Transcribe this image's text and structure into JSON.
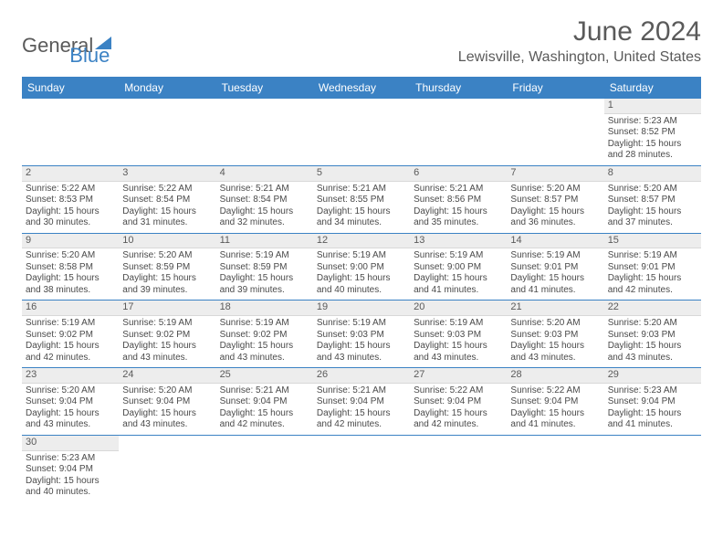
{
  "logo": {
    "part1": "General",
    "part2": "Blue"
  },
  "title": "June 2024",
  "location": "Lewisville, Washington, United States",
  "colors": {
    "header_bg": "#3b82c4",
    "header_text": "#ffffff",
    "text": "#5a5a5a",
    "cell_text": "#4a4a4a",
    "divider": "#3b82c4",
    "daynum_bg": "#ededed"
  },
  "typography": {
    "title_fontsize": 30,
    "location_fontsize": 16,
    "dayheader_fontsize": 12,
    "cell_fontsize": 10
  },
  "day_names": [
    "Sunday",
    "Monday",
    "Tuesday",
    "Wednesday",
    "Thursday",
    "Friday",
    "Saturday"
  ],
  "weeks": [
    [
      null,
      null,
      null,
      null,
      null,
      null,
      {
        "n": "1",
        "sunrise": "Sunrise: 5:23 AM",
        "sunset": "Sunset: 8:52 PM",
        "dl1": "Daylight: 15 hours",
        "dl2": "and 28 minutes."
      }
    ],
    [
      {
        "n": "2",
        "sunrise": "Sunrise: 5:22 AM",
        "sunset": "Sunset: 8:53 PM",
        "dl1": "Daylight: 15 hours",
        "dl2": "and 30 minutes."
      },
      {
        "n": "3",
        "sunrise": "Sunrise: 5:22 AM",
        "sunset": "Sunset: 8:54 PM",
        "dl1": "Daylight: 15 hours",
        "dl2": "and 31 minutes."
      },
      {
        "n": "4",
        "sunrise": "Sunrise: 5:21 AM",
        "sunset": "Sunset: 8:54 PM",
        "dl1": "Daylight: 15 hours",
        "dl2": "and 32 minutes."
      },
      {
        "n": "5",
        "sunrise": "Sunrise: 5:21 AM",
        "sunset": "Sunset: 8:55 PM",
        "dl1": "Daylight: 15 hours",
        "dl2": "and 34 minutes."
      },
      {
        "n": "6",
        "sunrise": "Sunrise: 5:21 AM",
        "sunset": "Sunset: 8:56 PM",
        "dl1": "Daylight: 15 hours",
        "dl2": "and 35 minutes."
      },
      {
        "n": "7",
        "sunrise": "Sunrise: 5:20 AM",
        "sunset": "Sunset: 8:57 PM",
        "dl1": "Daylight: 15 hours",
        "dl2": "and 36 minutes."
      },
      {
        "n": "8",
        "sunrise": "Sunrise: 5:20 AM",
        "sunset": "Sunset: 8:57 PM",
        "dl1": "Daylight: 15 hours",
        "dl2": "and 37 minutes."
      }
    ],
    [
      {
        "n": "9",
        "sunrise": "Sunrise: 5:20 AM",
        "sunset": "Sunset: 8:58 PM",
        "dl1": "Daylight: 15 hours",
        "dl2": "and 38 minutes."
      },
      {
        "n": "10",
        "sunrise": "Sunrise: 5:20 AM",
        "sunset": "Sunset: 8:59 PM",
        "dl1": "Daylight: 15 hours",
        "dl2": "and 39 minutes."
      },
      {
        "n": "11",
        "sunrise": "Sunrise: 5:19 AM",
        "sunset": "Sunset: 8:59 PM",
        "dl1": "Daylight: 15 hours",
        "dl2": "and 39 minutes."
      },
      {
        "n": "12",
        "sunrise": "Sunrise: 5:19 AM",
        "sunset": "Sunset: 9:00 PM",
        "dl1": "Daylight: 15 hours",
        "dl2": "and 40 minutes."
      },
      {
        "n": "13",
        "sunrise": "Sunrise: 5:19 AM",
        "sunset": "Sunset: 9:00 PM",
        "dl1": "Daylight: 15 hours",
        "dl2": "and 41 minutes."
      },
      {
        "n": "14",
        "sunrise": "Sunrise: 5:19 AM",
        "sunset": "Sunset: 9:01 PM",
        "dl1": "Daylight: 15 hours",
        "dl2": "and 41 minutes."
      },
      {
        "n": "15",
        "sunrise": "Sunrise: 5:19 AM",
        "sunset": "Sunset: 9:01 PM",
        "dl1": "Daylight: 15 hours",
        "dl2": "and 42 minutes."
      }
    ],
    [
      {
        "n": "16",
        "sunrise": "Sunrise: 5:19 AM",
        "sunset": "Sunset: 9:02 PM",
        "dl1": "Daylight: 15 hours",
        "dl2": "and 42 minutes."
      },
      {
        "n": "17",
        "sunrise": "Sunrise: 5:19 AM",
        "sunset": "Sunset: 9:02 PM",
        "dl1": "Daylight: 15 hours",
        "dl2": "and 43 minutes."
      },
      {
        "n": "18",
        "sunrise": "Sunrise: 5:19 AM",
        "sunset": "Sunset: 9:02 PM",
        "dl1": "Daylight: 15 hours",
        "dl2": "and 43 minutes."
      },
      {
        "n": "19",
        "sunrise": "Sunrise: 5:19 AM",
        "sunset": "Sunset: 9:03 PM",
        "dl1": "Daylight: 15 hours",
        "dl2": "and 43 minutes."
      },
      {
        "n": "20",
        "sunrise": "Sunrise: 5:19 AM",
        "sunset": "Sunset: 9:03 PM",
        "dl1": "Daylight: 15 hours",
        "dl2": "and 43 minutes."
      },
      {
        "n": "21",
        "sunrise": "Sunrise: 5:20 AM",
        "sunset": "Sunset: 9:03 PM",
        "dl1": "Daylight: 15 hours",
        "dl2": "and 43 minutes."
      },
      {
        "n": "22",
        "sunrise": "Sunrise: 5:20 AM",
        "sunset": "Sunset: 9:03 PM",
        "dl1": "Daylight: 15 hours",
        "dl2": "and 43 minutes."
      }
    ],
    [
      {
        "n": "23",
        "sunrise": "Sunrise: 5:20 AM",
        "sunset": "Sunset: 9:04 PM",
        "dl1": "Daylight: 15 hours",
        "dl2": "and 43 minutes."
      },
      {
        "n": "24",
        "sunrise": "Sunrise: 5:20 AM",
        "sunset": "Sunset: 9:04 PM",
        "dl1": "Daylight: 15 hours",
        "dl2": "and 43 minutes."
      },
      {
        "n": "25",
        "sunrise": "Sunrise: 5:21 AM",
        "sunset": "Sunset: 9:04 PM",
        "dl1": "Daylight: 15 hours",
        "dl2": "and 42 minutes."
      },
      {
        "n": "26",
        "sunrise": "Sunrise: 5:21 AM",
        "sunset": "Sunset: 9:04 PM",
        "dl1": "Daylight: 15 hours",
        "dl2": "and 42 minutes."
      },
      {
        "n": "27",
        "sunrise": "Sunrise: 5:22 AM",
        "sunset": "Sunset: 9:04 PM",
        "dl1": "Daylight: 15 hours",
        "dl2": "and 42 minutes."
      },
      {
        "n": "28",
        "sunrise": "Sunrise: 5:22 AM",
        "sunset": "Sunset: 9:04 PM",
        "dl1": "Daylight: 15 hours",
        "dl2": "and 41 minutes."
      },
      {
        "n": "29",
        "sunrise": "Sunrise: 5:23 AM",
        "sunset": "Sunset: 9:04 PM",
        "dl1": "Daylight: 15 hours",
        "dl2": "and 41 minutes."
      }
    ],
    [
      {
        "n": "30",
        "sunrise": "Sunrise: 5:23 AM",
        "sunset": "Sunset: 9:04 PM",
        "dl1": "Daylight: 15 hours",
        "dl2": "and 40 minutes."
      },
      null,
      null,
      null,
      null,
      null,
      null
    ]
  ]
}
